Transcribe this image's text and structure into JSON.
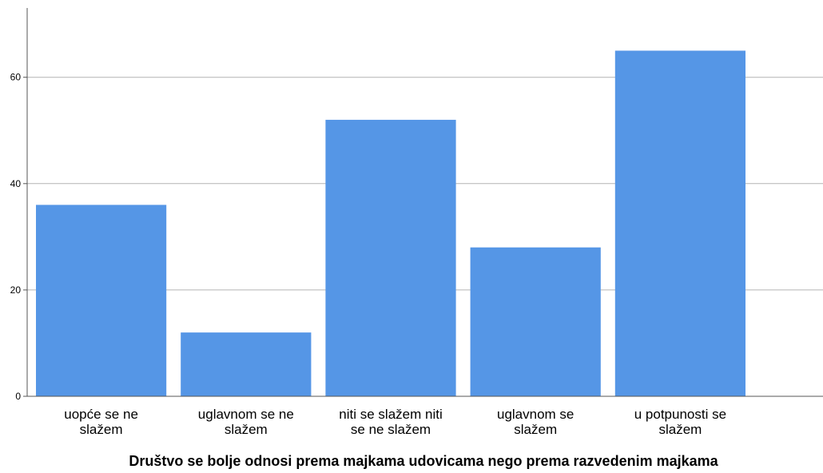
{
  "chart_data": {
    "type": "bar",
    "categories": [
      [
        "uopće se ne",
        "slažem"
      ],
      [
        "uglavnom se ne",
        "slažem"
      ],
      [
        "niti se slažem niti",
        "se ne slažem"
      ],
      [
        "uglavnom se",
        "slažem"
      ],
      [
        "u potpunosti se",
        "slažem"
      ]
    ],
    "values": [
      36,
      12,
      52,
      28,
      65
    ],
    "xlabel": "Društvo se bolje odnosi prema majkama udovicama nego prema razvedenim majkama",
    "ylabel": "",
    "ylim": [
      0,
      73
    ],
    "yticks": [
      0,
      20,
      40,
      60
    ],
    "grid": true,
    "bar_color": "#5596e6",
    "grid_color": "#b4b4b4",
    "axis_color": "#555555"
  }
}
